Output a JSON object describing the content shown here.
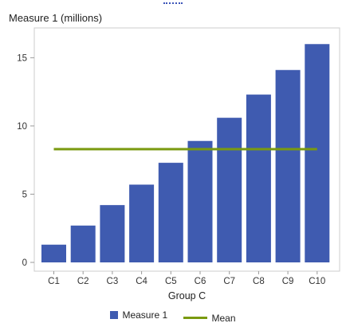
{
  "chart_data": {
    "type": "bar",
    "ylabel": "Measure 1 (millions)",
    "xlabel": "Group C",
    "categories": [
      "C1",
      "C2",
      "C3",
      "C4",
      "C5",
      "C6",
      "C7",
      "C8",
      "C9",
      "C10"
    ],
    "series": [
      {
        "name": "Measure 1",
        "values": [
          1.3,
          2.7,
          4.2,
          5.7,
          7.3,
          8.9,
          10.6,
          12.3,
          14.1,
          16.0
        ]
      }
    ],
    "mean": {
      "name": "Mean",
      "value": 8.3
    },
    "yticks": [
      0,
      5,
      10,
      15
    ],
    "ylim": [
      0,
      16.6
    ],
    "legend_position": "bottom",
    "grid": false,
    "colors": {
      "bar": "#3f5bb0",
      "mean": "#7a9a0f",
      "frame": "#cccccc"
    }
  }
}
